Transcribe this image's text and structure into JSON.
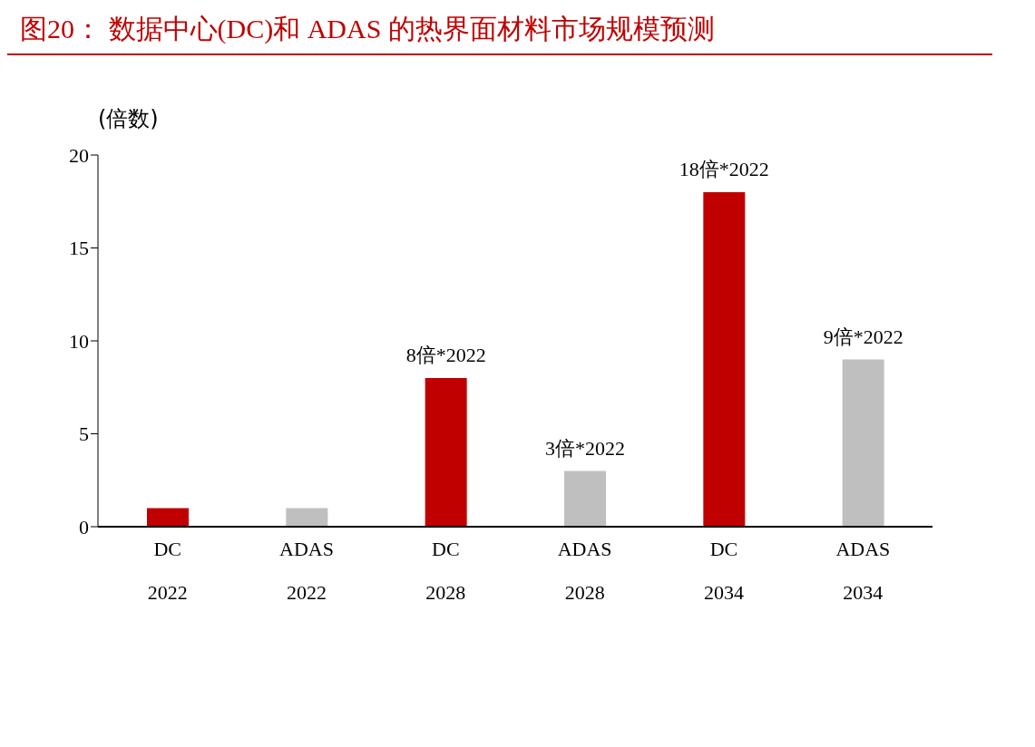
{
  "chart_data": {
    "type": "bar",
    "title": "图20：  数据中心(DC)和 ADAS 的热界面材料市场规模预测",
    "ylabel": "(倍数)",
    "categories": [
      "DC\n2022",
      "ADAS\n2022",
      "DC\n2028",
      "ADAS\n2028",
      "DC\n2034",
      "ADAS\n2034"
    ],
    "values": [
      1,
      1,
      8,
      3,
      18,
      9
    ],
    "colors": [
      "#c00000",
      "#bfbfbf",
      "#c00000",
      "#bfbfbf",
      "#c00000",
      "#bfbfbf"
    ],
    "value_labels": [
      null,
      null,
      "8倍*2022",
      "3倍*2022",
      "18倍*2022",
      "9倍*2022"
    ],
    "ylim": [
      0,
      20
    ],
    "yticks": [
      0,
      5,
      10,
      15,
      20
    ],
    "grid": false,
    "legend": false
  }
}
